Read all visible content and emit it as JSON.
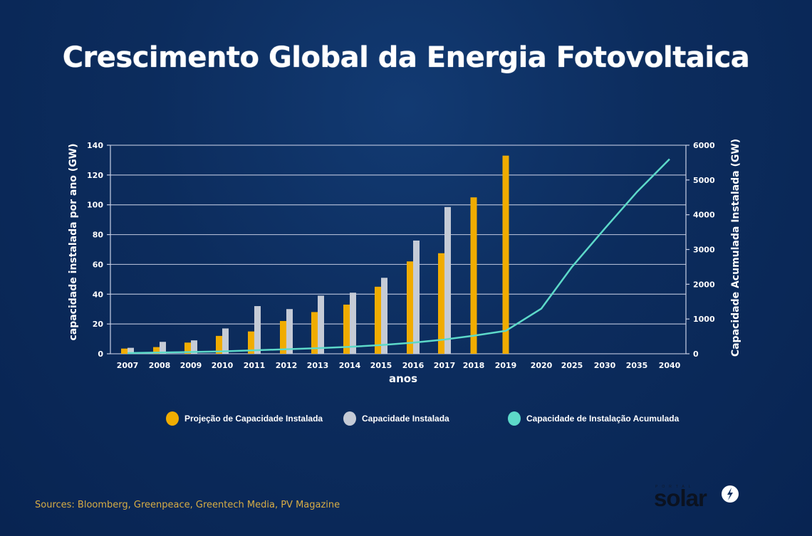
{
  "title": "Crescimento Global da Energia Fotovoltaica",
  "chart_data": {
    "type": "bar",
    "title": "Crescimento Global da Energia Fotovoltaica",
    "xlabel": "anos",
    "ylabel": "capacidade instalada por ano (GW)",
    "y2label": "Capacidade Acumulada Instalada (GW)",
    "categories": [
      "2007",
      "2008",
      "2009",
      "2010",
      "2011",
      "2012",
      "2013",
      "2014",
      "2015",
      "2016",
      "2017",
      "2018",
      "2019",
      "2020",
      "2025",
      "2030",
      "2035",
      "2040"
    ],
    "ylim": [
      0,
      140
    ],
    "yticks": [
      0,
      20,
      40,
      60,
      80,
      100,
      120,
      140
    ],
    "y2lim": [
      0,
      6000
    ],
    "y2ticks": [
      0,
      1000,
      2000,
      3000,
      4000,
      5000,
      6000
    ],
    "grid": true,
    "legend_position": "bottom",
    "series": [
      {
        "name": "Projeção de Capacidade Instalada",
        "type": "bar",
        "axis": "left",
        "color": "#f0ac00",
        "values": [
          3.5,
          4.5,
          7.5,
          12,
          15,
          22,
          28,
          33,
          45,
          62,
          67.5,
          105,
          133,
          null,
          null,
          null,
          null,
          null
        ]
      },
      {
        "name": "Capacidade Instalada",
        "type": "bar",
        "axis": "left",
        "color": "#c5cbd6",
        "values": [
          4,
          8,
          9,
          17,
          32,
          30,
          39,
          41,
          51,
          76,
          98.5,
          null,
          null,
          null,
          null,
          null,
          null,
          null
        ]
      },
      {
        "name": "Capacidade de Instalação Acumulada",
        "type": "line",
        "axis": "right",
        "color": "#5dd9c9",
        "values": [
          20,
          35,
          50,
          70,
          100,
          130,
          160,
          200,
          250,
          320,
          410,
          520,
          660,
          1300,
          2500,
          3600,
          4650,
          5600
        ]
      }
    ]
  },
  "legend": [
    {
      "label": "Projeção de Capacidade Instalada",
      "color": "#f0ac00"
    },
    {
      "label": "Capacidade Instalada",
      "color": "#c5cbd6"
    },
    {
      "label": "Capacidade de Instalação Acumulada",
      "color": "#5dd9c9"
    }
  ],
  "sources": "Sources: Bloomberg, Greenpeace, Greentech Media, PV Magazine",
  "logo": {
    "top": "PORTAL",
    "main": "solar",
    "icon": "lightning-bolt-icon"
  }
}
